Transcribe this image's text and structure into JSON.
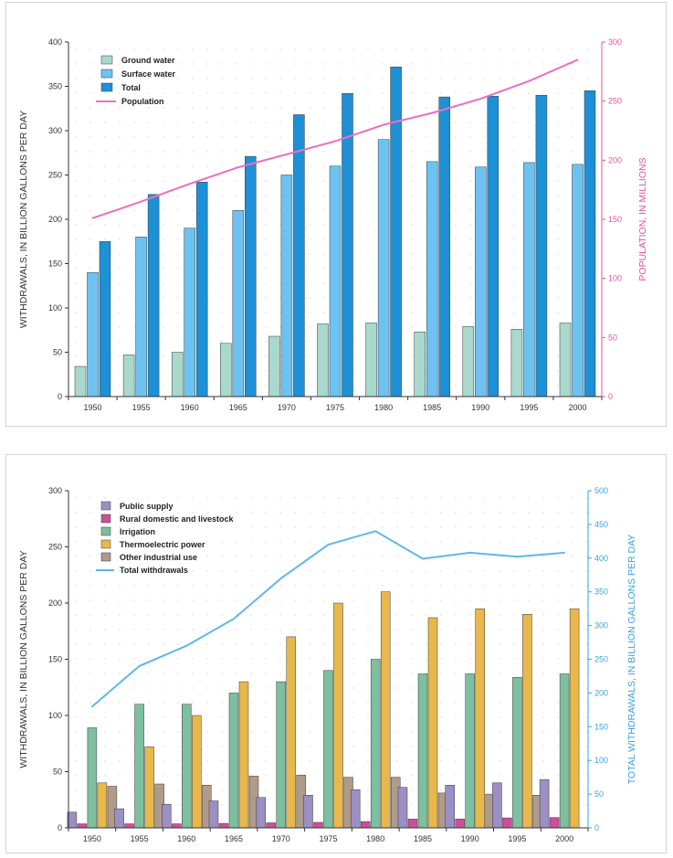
{
  "chart_data": [
    {
      "type": "bar",
      "title": "",
      "categories": [
        "1950",
        "1955",
        "1960",
        "1965",
        "1970",
        "1975",
        "1980",
        "1985",
        "1990",
        "1995",
        "2000"
      ],
      "ylabel": "WITHDRAWALS, IN BILLION GALLONS PER DAY",
      "y2label": "POPULATION, IN MILLIONS",
      "ylim": [
        0,
        400
      ],
      "y2lim": [
        0,
        300
      ],
      "yticks": [
        "0",
        "50",
        "100",
        "150",
        "200",
        "250",
        "300",
        "350",
        "400"
      ],
      "y2ticks": [
        "0",
        "50",
        "100",
        "150",
        "200",
        "250",
        "300"
      ],
      "grid": "dotted",
      "legend_position": "top-left",
      "series": [
        {
          "name": "Ground water",
          "kind": "bar",
          "color": "#a9d8cd",
          "values": [
            34,
            47,
            50,
            60,
            68,
            82,
            83,
            73,
            79,
            76,
            83
          ]
        },
        {
          "name": "Surface water",
          "kind": "bar",
          "color": "#6cc3f2",
          "values": [
            140,
            180,
            190,
            210,
            250,
            260,
            290,
            265,
            259,
            264,
            262
          ]
        },
        {
          "name": "Total",
          "kind": "bar",
          "color": "#1e90d6",
          "values": [
            175,
            228,
            242,
            271,
            318,
            342,
            372,
            338,
            339,
            340,
            345
          ]
        },
        {
          "name": "Population",
          "kind": "line",
          "axis": "right",
          "color": "#ec6fc1",
          "values": [
            151,
            165,
            180,
            194,
            205,
            216,
            230,
            240,
            252,
            267,
            285
          ]
        }
      ]
    },
    {
      "type": "bar",
      "title": "",
      "categories": [
        "1950",
        "1955",
        "1960",
        "1965",
        "1970",
        "1975",
        "1980",
        "1985",
        "1990",
        "1995",
        "2000"
      ],
      "ylabel": "WITHDRAWALS, IN BILLION GALLONS PER DAY",
      "y2label": "TOTAL WITHDRAWALS, IN BILLION GALLONS PER DAY",
      "ylim": [
        0,
        300
      ],
      "y2lim": [
        0,
        500
      ],
      "yticks": [
        "0",
        "50",
        "100",
        "150",
        "200",
        "250",
        "300"
      ],
      "y2ticks": [
        "0",
        "50",
        "100",
        "150",
        "200",
        "250",
        "300",
        "350",
        "400",
        "450",
        "500"
      ],
      "grid": "dotted",
      "legend_position": "top-left",
      "series": [
        {
          "name": "Public supply",
          "kind": "bar",
          "color": "#9b8fc4",
          "values": [
            14,
            17,
            21,
            24,
            27,
            29,
            34,
            36,
            38,
            40,
            43
          ]
        },
        {
          "name": "Rural domestic and livestock",
          "kind": "bar",
          "color": "#cc4f9a",
          "values": [
            3.6,
            3.6,
            3.6,
            4.0,
            4.5,
            4.9,
            5.6,
            7.8,
            7.9,
            8.9,
            9.2
          ]
        },
        {
          "name": "Irrigation",
          "kind": "bar",
          "color": "#7dbf9f",
          "values": [
            89,
            110,
            110,
            120,
            130,
            140,
            150,
            137,
            137,
            134,
            137
          ]
        },
        {
          "name": "Thermoelectric power",
          "kind": "bar",
          "color": "#e8b84c",
          "values": [
            40,
            72,
            100,
            130,
            170,
            200,
            210,
            187,
            195,
            190,
            195
          ]
        },
        {
          "name": "Other industrial use",
          "kind": "bar",
          "color": "#b09a8a",
          "values": [
            37,
            39,
            38,
            46,
            47,
            45,
            45,
            31,
            30,
            29,
            0
          ]
        },
        {
          "name": "Total withdrawals",
          "kind": "line",
          "axis": "right",
          "color": "#5db8e8",
          "values": [
            180,
            240,
            270,
            310,
            370,
            420,
            440,
            399,
            408,
            402,
            408
          ]
        }
      ]
    }
  ]
}
